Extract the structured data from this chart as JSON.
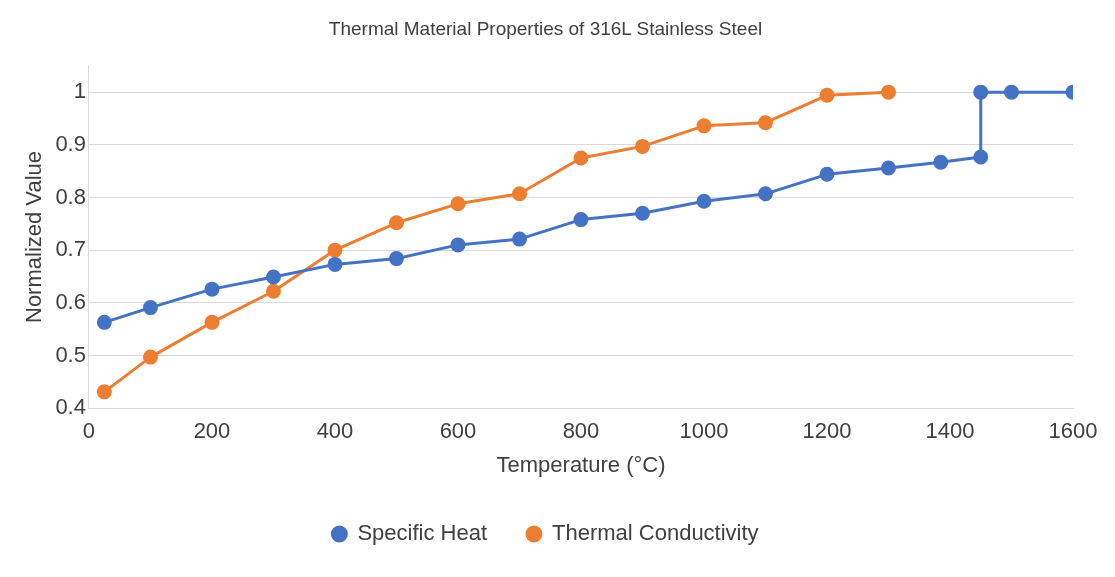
{
  "chart_data": {
    "type": "line",
    "title": "Thermal Material Properties of 316L Stainless Steel",
    "xlabel": "Temperature (°C)",
    "ylabel": "Normalized Value",
    "xlim": [
      0,
      1600
    ],
    "xticks": [
      0,
      200,
      400,
      600,
      800,
      1000,
      1200,
      1400,
      1600
    ],
    "ylim": [
      0.4,
      1.05
    ],
    "yticks": [
      0.4,
      0.5,
      0.6,
      0.7,
      0.8,
      0.9,
      1
    ],
    "grid": "y",
    "legend": "bottom",
    "marker": "circle",
    "line_style": "solid",
    "series": [
      {
        "name": "Specific Heat",
        "color": "#4472c4",
        "x": [
          25,
          100,
          200,
          300,
          400,
          500,
          600,
          700,
          800,
          900,
          1000,
          1100,
          1200,
          1300,
          1385,
          1450,
          1450,
          1500,
          1600
        ],
        "values": [
          0.563,
          0.591,
          0.626,
          0.649,
          0.673,
          0.684,
          0.71,
          0.721,
          0.758,
          0.77,
          0.793,
          0.807,
          0.844,
          0.856,
          0.867,
          0.877,
          1,
          1,
          1
        ]
      },
      {
        "name": "Thermal Conductivity",
        "color": "#ed7d31",
        "x": [
          25,
          100,
          200,
          300,
          400,
          500,
          600,
          700,
          800,
          900,
          1000,
          1100,
          1200,
          1300
        ],
        "values": [
          0.431,
          0.497,
          0.563,
          0.622,
          0.7,
          0.752,
          0.788,
          0.807,
          0.875,
          0.897,
          0.936,
          0.942,
          0.994,
          1
        ]
      }
    ]
  }
}
